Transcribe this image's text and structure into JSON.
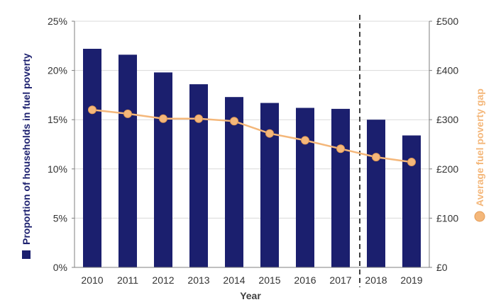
{
  "chart_data": {
    "type": "bar",
    "categories": [
      "2010",
      "2011",
      "2012",
      "2013",
      "2014",
      "2015",
      "2016",
      "2017",
      "2018",
      "2019"
    ],
    "series": [
      {
        "type": "bar",
        "axis": "left",
        "color": "#1b1f6e",
        "values": [
          22.2,
          21.6,
          19.8,
          18.6,
          17.3,
          16.7,
          16.2,
          16.1,
          15.0,
          13.4
        ]
      },
      {
        "type": "line",
        "axis": "right",
        "color": "#f4b77a",
        "values": [
          320,
          312,
          302,
          302,
          297,
          272,
          258,
          241,
          224,
          214
        ]
      }
    ],
    "xlabel": "Year",
    "ylabel_left": "Proportion of households in fuel poverty",
    "ylabel_right": "Average fuel poverty gap",
    "y_left": {
      "lim": [
        0,
        25
      ],
      "ticks": [
        "0%",
        "5%",
        "10%",
        "15%",
        "20%",
        "25%"
      ]
    },
    "y_right": {
      "lim": [
        0,
        500
      ],
      "ticks": [
        "£0",
        "£100",
        "£200",
        "£300",
        "£400",
        "£500"
      ]
    },
    "grid": true,
    "divider_between": [
      "2017",
      "2018"
    ],
    "colors": {
      "bar": "#1b1f6e",
      "line": "#f4b77a",
      "grid": "#d9d9d9",
      "axis": "#7f7f7f",
      "divider": "#404040",
      "right_label": "#f4b77a"
    }
  }
}
